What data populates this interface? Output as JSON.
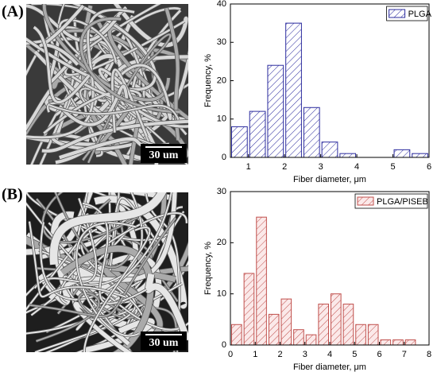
{
  "panels": [
    {
      "label": "(A)",
      "scale_bar": "30 um"
    },
    {
      "label": "(B)",
      "scale_bar": "30 um"
    }
  ],
  "chart_data": [
    {
      "type": "histogram",
      "xlabel": "Fiber diameter, μm",
      "ylabel": "Frequency, %",
      "bins": [
        0.5,
        1,
        1.5,
        2,
        2.5,
        3,
        3.5,
        4,
        4.5,
        5,
        5.5,
        6
      ],
      "series": [
        {
          "name": "PLGA",
          "color": "#2b2b9e",
          "fill": "#ffffff",
          "values": [
            8,
            12,
            24,
            35,
            13,
            4,
            1,
            0,
            0,
            2,
            1
          ]
        }
      ],
      "xlim": [
        0.5,
        6
      ],
      "xticks": [
        1,
        2,
        3,
        4,
        5,
        6
      ],
      "ylim": [
        0,
        40
      ],
      "yticks": [
        0,
        10,
        20,
        30,
        40
      ],
      "legend": "upper right"
    },
    {
      "type": "histogram",
      "xlabel": "Fiber diameter, μm",
      "ylabel": "Frequency, %",
      "bins": [
        0,
        0.5,
        1,
        1.5,
        2,
        2.5,
        3,
        3.5,
        4,
        4.5,
        5,
        5.5,
        6,
        6.5,
        7,
        7.5
      ],
      "series": [
        {
          "name": "PLGA/PISEB",
          "color": "#c0504d",
          "fill": "#fbe9e9",
          "values": [
            4,
            14,
            25,
            6,
            9,
            3,
            2,
            8,
            10,
            8,
            4,
            4,
            1,
            1,
            1
          ]
        }
      ],
      "xlim": [
        0,
        8
      ],
      "xticks": [
        0,
        1,
        2,
        3,
        4,
        5,
        6,
        7,
        8
      ],
      "ylim": [
        0,
        30
      ],
      "yticks": [
        0,
        10,
        20,
        30
      ],
      "legend": "upper right"
    }
  ]
}
